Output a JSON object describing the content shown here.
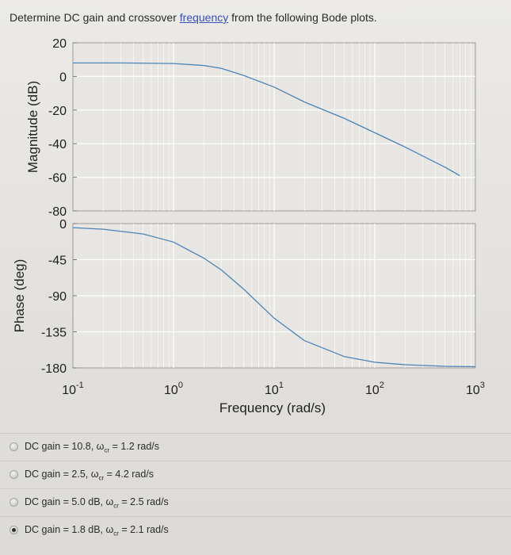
{
  "question": {
    "before": "Determine DC gain and crossover ",
    "link": "frequency",
    "after": " from the following Bode plots."
  },
  "magnitude": {
    "ylabel": "Magnitude (dB)",
    "ticks": [
      "20",
      "0",
      "-20",
      "-40",
      "-60",
      "-80"
    ],
    "tick_values": [
      20,
      0,
      -20,
      -40,
      -60,
      -80
    ]
  },
  "phase": {
    "ylabel": "Phase (deg)",
    "ticks": [
      "0",
      "-45",
      "-90",
      "-135",
      "-180"
    ],
    "tick_values": [
      0,
      -45,
      -90,
      -135,
      -180
    ]
  },
  "xaxis": {
    "label": "Frequency (rad/s)",
    "tick_base": "10",
    "tick_exponents": [
      "-1",
      "0",
      "1",
      "2",
      "3"
    ]
  },
  "colors": {
    "curve": "#4a83b4",
    "grid": "#ffffff",
    "plot_bg": "#e8e6e3",
    "selected_radio": "#2b2b2b"
  },
  "chart_data": [
    {
      "type": "line",
      "title": "",
      "ylabel": "Magnitude (dB)",
      "xlabel": "",
      "xscale": "log",
      "xlim": [
        0.1,
        1000
      ],
      "ylim": [
        -80,
        20
      ],
      "grid": true,
      "series": [
        {
          "x": [
            0.1,
            0.3,
            1,
            2,
            3,
            5,
            10,
            20,
            50,
            100,
            200,
            500,
            700
          ],
          "y": [
            8,
            8,
            7.7,
            6.5,
            4.8,
            0.5,
            -6.3,
            -15.2,
            -25,
            -33.5,
            -42,
            -54,
            -59
          ]
        }
      ]
    },
    {
      "type": "line",
      "title": "",
      "ylabel": "Phase (deg)",
      "xlabel": "Frequency (rad/s)",
      "xscale": "log",
      "xlim": [
        0.1,
        1000
      ],
      "ylim": [
        -180,
        0
      ],
      "grid": true,
      "series": [
        {
          "x": [
            0.1,
            0.2,
            0.5,
            1,
            2,
            3,
            5,
            10,
            20,
            50,
            100,
            200,
            500,
            1000
          ],
          "y": [
            -5,
            -7,
            -13,
            -23,
            -43,
            -58,
            -82,
            -118,
            -146,
            -166,
            -173,
            -176,
            -178,
            -178.5
          ]
        }
      ]
    }
  ],
  "options": [
    {
      "prefix": "DC gain = 10.8, ω",
      "sub": "cr",
      "suffix": " = 1.2 rad/s",
      "selected": false
    },
    {
      "prefix": "DC gain = 2.5, ω",
      "sub": "cr",
      "suffix": " = 4.2 rad/s",
      "selected": false
    },
    {
      "prefix": "DC gain = 5.0 dB, ω",
      "sub": "cr",
      "suffix": " = 2.5 rad/s",
      "selected": false
    },
    {
      "prefix": "DC gain = 1.8 dB, ω",
      "sub": "cr",
      "suffix": " = 2.1 rad/s",
      "selected": true
    }
  ]
}
